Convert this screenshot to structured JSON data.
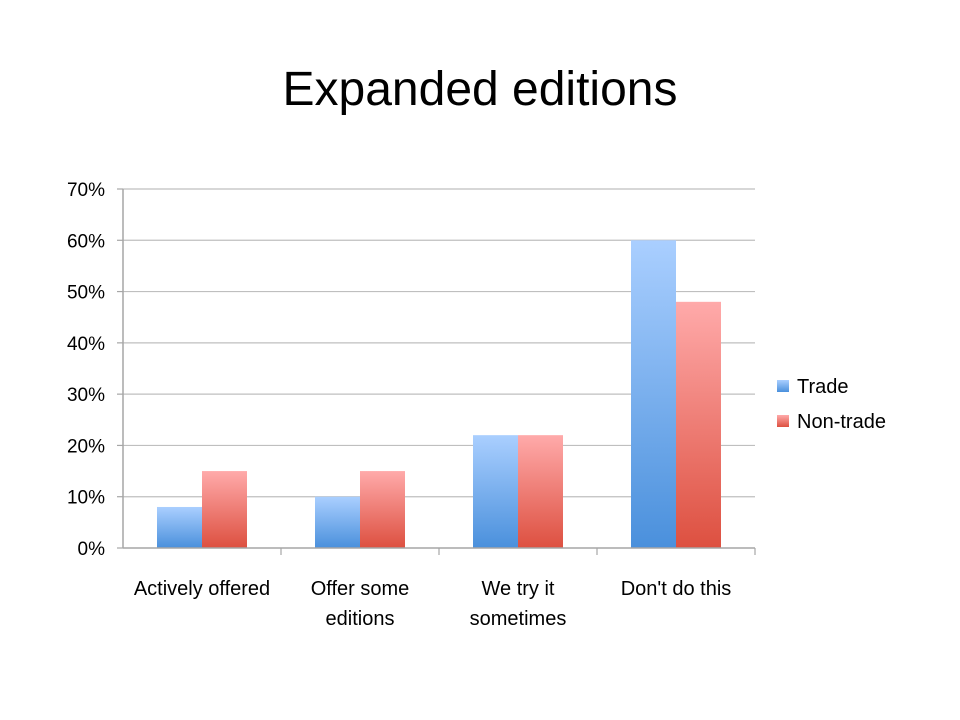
{
  "chart_data": {
    "type": "bar",
    "title": "Expanded editions",
    "categories": [
      [
        "Actively offered"
      ],
      [
        "Offer some",
        "editions"
      ],
      [
        "We try it",
        "sometimes"
      ],
      [
        "Don't do this"
      ]
    ],
    "series": [
      {
        "name": "Trade",
        "values": [
          8,
          10,
          22,
          60
        ],
        "color": "#5b9bd5",
        "color_light": "#aacfff",
        "color_dark": "#4a90dc"
      },
      {
        "name": "Non-trade",
        "values": [
          15,
          15,
          22,
          48
        ],
        "color": "#e06666",
        "color_light": "#ffaaaa",
        "color_dark": "#dd5040"
      }
    ],
    "ylim": [
      0,
      70
    ],
    "yticks": [
      "0%",
      "10%",
      "20%",
      "30%",
      "40%",
      "50%",
      "60%",
      "70%"
    ],
    "ytick_values": [
      0,
      10,
      20,
      30,
      40,
      50,
      60,
      70
    ],
    "grid": true,
    "legend": "right",
    "xlabel": "",
    "ylabel": ""
  }
}
